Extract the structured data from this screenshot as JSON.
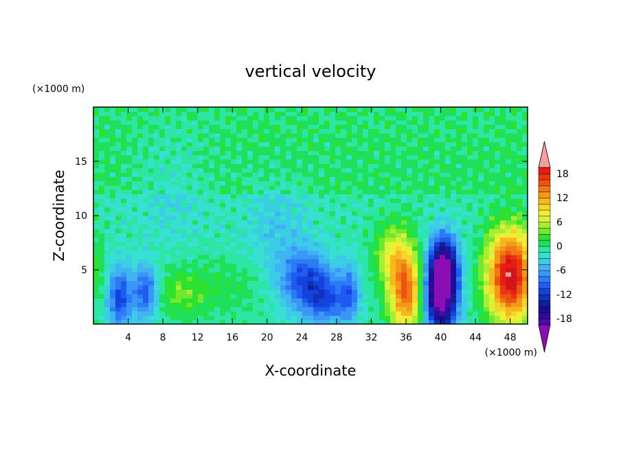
{
  "chart_data": {
    "type": "heatmap",
    "title": "vertical velocity",
    "xlabel": "X-coordinate",
    "ylabel": "Z-coordinate",
    "x_units": "(×1000 m)",
    "y_units": "(×1000 m)",
    "xlim": [
      0,
      50
    ],
    "ylim": [
      0,
      20
    ],
    "x_ticks": [
      4,
      8,
      12,
      16,
      20,
      24,
      28,
      32,
      36,
      40,
      44,
      48
    ],
    "x_tick_labels": [
      "4",
      "8",
      "12",
      "16",
      "20",
      "24",
      "28",
      "32",
      "36",
      "40",
      "44",
      "48"
    ],
    "y_ticks": [
      5,
      10,
      15
    ],
    "y_tick_labels": [
      "5",
      "10",
      "15"
    ],
    "background_value": -1,
    "features": [
      {
        "x": 48,
        "z": 4.5,
        "w": 22,
        "sx": 1.9,
        "sz": 3.0
      },
      {
        "x": 36,
        "z": 3.0,
        "w": 16,
        "sx": 1.4,
        "sz": 2.6
      },
      {
        "x": 34.5,
        "z": 6.5,
        "w": 7,
        "sx": 1.5,
        "sz": 2.0
      },
      {
        "x": 40,
        "z": 3.0,
        "w": -24,
        "sx": 1.3,
        "sz": 2.6
      },
      {
        "x": 40.5,
        "z": 6.0,
        "w": -9,
        "sx": 1.1,
        "sz": 1.8
      },
      {
        "x": 24.5,
        "z": 4.0,
        "w": -10,
        "sx": 2.2,
        "sz": 2.0
      },
      {
        "x": 27,
        "z": 2.0,
        "w": -7,
        "sx": 1.6,
        "sz": 1.5
      },
      {
        "x": 29.5,
        "z": 3.0,
        "w": -7,
        "sx": 0.8,
        "sz": 1.8
      },
      {
        "x": 3,
        "z": 2.5,
        "w": -10,
        "sx": 1.0,
        "sz": 2.0
      },
      {
        "x": 6,
        "z": 3.0,
        "w": -9,
        "sx": 1.0,
        "sz": 1.8
      },
      {
        "x": 10,
        "z": 2.8,
        "w": 4,
        "sx": 2.0,
        "sz": 1.5
      },
      {
        "x": 15,
        "z": 3.5,
        "w": 2,
        "sx": 4.0,
        "sz": 2.0
      },
      {
        "x": 0.5,
        "z": 5.0,
        "w": 3,
        "sx": 0.6,
        "sz": 2.5
      },
      {
        "x": 21,
        "z": 9.0,
        "w": -3,
        "sx": 2.5,
        "sz": 3.0
      },
      {
        "x": 9,
        "z": 13.0,
        "w": -2,
        "sx": 3.0,
        "sz": 4.0
      }
    ],
    "colorbar": {
      "levels": [
        -21,
        -19.5,
        -18,
        -16.5,
        -15,
        -13.5,
        -12,
        -10.5,
        -9,
        -7.5,
        -6,
        -4.5,
        -3,
        -1.5,
        0,
        1.5,
        3,
        4.5,
        6,
        7.5,
        9,
        10.5,
        12,
        13.5,
        15,
        16.5,
        18,
        19.5,
        21
      ],
      "tick_values": [
        -18,
        -12,
        -6,
        0,
        6,
        12,
        18
      ],
      "tick_labels": [
        "-18",
        "-12",
        "-6",
        "0",
        "6",
        "12",
        "18"
      ],
      "colors": [
        "#8a0fb2",
        "#4a0aa6",
        "#2e0a9e",
        "#1a0e96",
        "#102090",
        "#0f30b8",
        "#1442dc",
        "#1e5cf0",
        "#2d7af5",
        "#3c96f8",
        "#40b4f2",
        "#3ccce6",
        "#38e0d2",
        "#2ee6a4",
        "#1ee05a",
        "#2fe12f",
        "#72e82e",
        "#a6ee34",
        "#d6f23a",
        "#f2ee36",
        "#f6d42c",
        "#f7b81f",
        "#f49818",
        "#f07814",
        "#ed5411",
        "#ea3610",
        "#e61e14",
        "#d01418"
      ],
      "over_color": "#f4a0a0",
      "under_color": "#8a0fb2"
    }
  }
}
